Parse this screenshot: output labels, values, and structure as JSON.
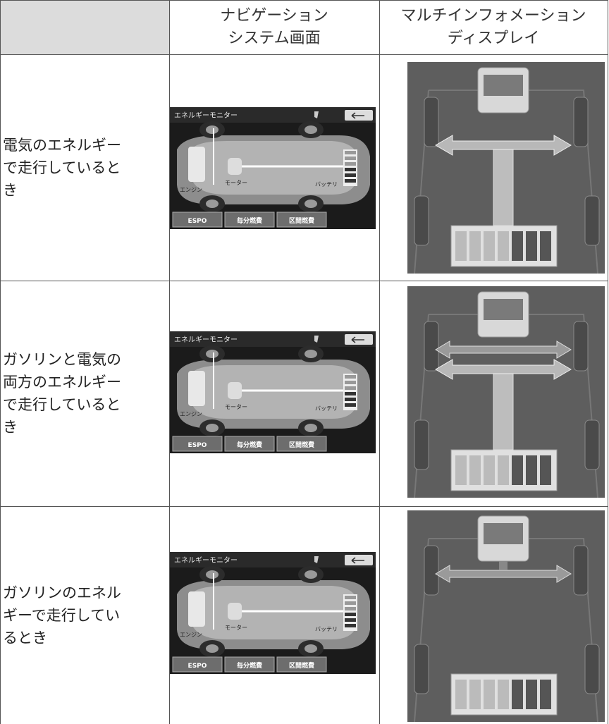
{
  "header": {
    "col1": "",
    "col2": [
      "ナビゲーション",
      "システム画面"
    ],
    "col3": [
      "マルチインフォメーション",
      "ディスプレイ"
    ]
  },
  "rows": [
    {
      "label": [
        "電気のエネルギー",
        "で走行していると",
        "き"
      ],
      "nav": {
        "title": "エネルギーモニター",
        "engine": "エンジン",
        "motor": "モーター",
        "battery": "バッテリ",
        "buttons": [
          "ESPO",
          "毎分燃費",
          "区間燃費"
        ]
      }
    },
    {
      "label": [
        "ガソリンと電気の",
        "両方のエネルギー",
        "で走行していると",
        "き"
      ],
      "nav": {
        "title": "エネルギーモニター",
        "engine": "エンジン",
        "motor": "モーター",
        "battery": "バッテリ",
        "buttons": [
          "ESPO",
          "毎分燃費",
          "区間燃費"
        ]
      }
    },
    {
      "label": [
        "ガソリンのエネル",
        "ギーで走行してい",
        "るとき"
      ],
      "nav": {
        "title": "エネルギーモニター",
        "engine": "エンジン",
        "motor": "モーター",
        "battery": "バッテリ",
        "buttons": [
          "ESPO",
          "毎分燃費",
          "区間燃費"
        ]
      }
    }
  ]
}
